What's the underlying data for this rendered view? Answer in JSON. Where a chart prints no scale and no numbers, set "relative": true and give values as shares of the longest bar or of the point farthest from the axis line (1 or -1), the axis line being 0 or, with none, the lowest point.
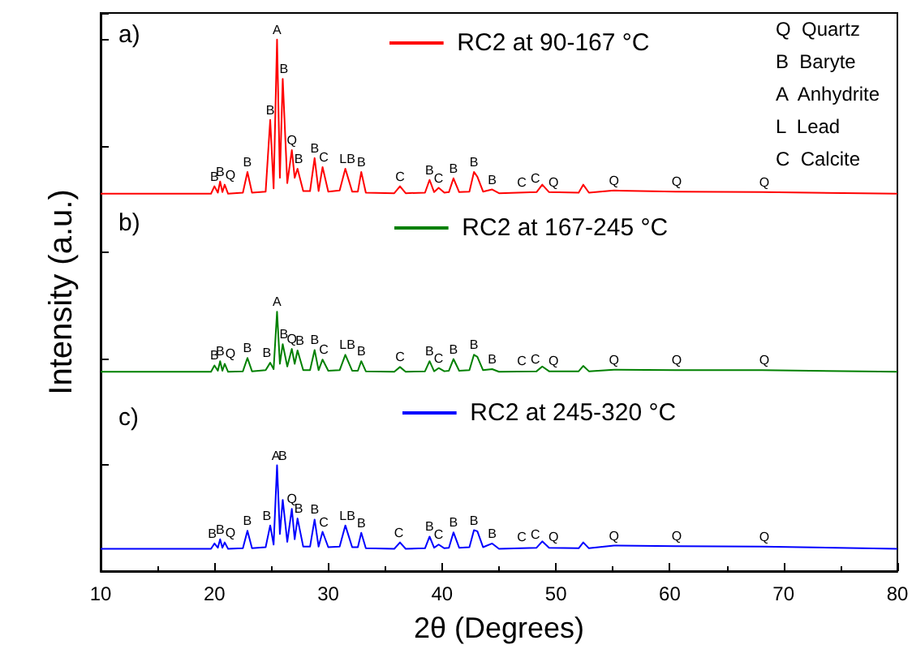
{
  "chart_data": {
    "type": "line",
    "relative": true,
    "xlabel": "2θ (Degrees)",
    "ylabel": "Intensity (a.u.)",
    "xlim": [
      10,
      80
    ],
    "xticks": [
      10,
      20,
      30,
      40,
      50,
      60,
      70,
      80
    ],
    "tick_labels": "x",
    "grid": false,
    "legend": "top",
    "marker": "none",
    "line_style": "solid",
    "x": [
      10,
      15,
      19.7,
      20.0,
      20.3,
      20.5,
      20.7,
      20.9,
      21.2,
      22.5,
      22.9,
      23.3,
      24.5,
      24.9,
      25.2,
      25.5,
      25.75,
      26.0,
      26.4,
      26.8,
      27.05,
      27.3,
      27.8,
      28.4,
      28.8,
      29.15,
      29.5,
      30.0,
      31.0,
      31.5,
      32.1,
      32.6,
      32.9,
      33.3,
      35.8,
      36.3,
      36.8,
      38.5,
      38.9,
      39.3,
      39.7,
      40.2,
      40.6,
      41.0,
      41.5,
      42.4,
      42.8,
      43.1,
      43.6,
      44.4,
      45,
      48.3,
      48.8,
      49.4,
      52.0,
      52.4,
      52.9,
      55.1,
      60.5,
      68.1,
      80
    ],
    "series": [
      {
        "name": "RC2 at 90-167 °C",
        "color": "#ff0000",
        "values": [
          0.71,
          0.71,
          0.71,
          0.724,
          0.712,
          0.733,
          0.713,
          0.727,
          0.71,
          0.712,
          0.751,
          0.712,
          0.714,
          0.849,
          0.72,
          1.0,
          0.74,
          0.926,
          0.73,
          0.792,
          0.74,
          0.757,
          0.715,
          0.715,
          0.777,
          0.715,
          0.76,
          0.714,
          0.716,
          0.757,
          0.714,
          0.714,
          0.751,
          0.712,
          0.711,
          0.724,
          0.711,
          0.712,
          0.736,
          0.713,
          0.721,
          0.712,
          0.713,
          0.739,
          0.713,
          0.714,
          0.751,
          0.742,
          0.714,
          0.718,
          0.711,
          0.713,
          0.727,
          0.713,
          0.712,
          0.727,
          0.712,
          0.716,
          0.714,
          0.713,
          0.71
        ]
      },
      {
        "name": "RC2 at 167-245 °C",
        "color": "#008000",
        "values": [
          0.375,
          0.375,
          0.375,
          0.387,
          0.377,
          0.395,
          0.377,
          0.39,
          0.375,
          0.376,
          0.401,
          0.376,
          0.378,
          0.392,
          0.38,
          0.488,
          0.39,
          0.427,
          0.385,
          0.418,
          0.39,
          0.415,
          0.378,
          0.378,
          0.416,
          0.378,
          0.398,
          0.377,
          0.378,
          0.407,
          0.377,
          0.377,
          0.395,
          0.376,
          0.375,
          0.384,
          0.375,
          0.376,
          0.395,
          0.376,
          0.382,
          0.376,
          0.377,
          0.399,
          0.377,
          0.378,
          0.407,
          0.403,
          0.378,
          0.38,
          0.375,
          0.376,
          0.385,
          0.376,
          0.376,
          0.386,
          0.376,
          0.379,
          0.378,
          0.378,
          0.375
        ]
      },
      {
        "name": "RC2 at 245-320 °C",
        "color": "#0000ff",
        "values": [
          0.042,
          0.042,
          0.042,
          0.052,
          0.044,
          0.06,
          0.044,
          0.054,
          0.042,
          0.043,
          0.076,
          0.043,
          0.045,
          0.086,
          0.05,
          0.199,
          0.07,
          0.134,
          0.055,
          0.117,
          0.06,
          0.099,
          0.046,
          0.046,
          0.097,
          0.046,
          0.074,
          0.045,
          0.046,
          0.086,
          0.045,
          0.045,
          0.072,
          0.043,
          0.042,
          0.054,
          0.042,
          0.043,
          0.065,
          0.044,
          0.05,
          0.043,
          0.044,
          0.073,
          0.044,
          0.045,
          0.077,
          0.075,
          0.045,
          0.052,
          0.042,
          0.044,
          0.056,
          0.044,
          0.043,
          0.054,
          0.043,
          0.048,
          0.047,
          0.046,
          0.042
        ]
      }
    ],
    "annotations": [
      "a)",
      "b)",
      "c)",
      "Q  Quartz",
      "B  Baryte",
      "A  Anhydrite",
      "L  Lead",
      "C  Calcite",
      {
        "text": "B",
        "x": 20.0,
        "y": 0.724
      },
      {
        "text": "B",
        "x": 20.5,
        "y": 0.733
      },
      {
        "text": "Q",
        "x": 21.4,
        "y": 0.727
      },
      {
        "text": "B",
        "x": 22.9,
        "y": 0.751
      },
      {
        "text": "B",
        "x": 24.9,
        "y": 0.849
      },
      {
        "text": "A",
        "x": 25.5,
        "y": 1.0
      },
      {
        "text": "B",
        "x": 26.1,
        "y": 0.926
      },
      {
        "text": "Q",
        "x": 26.8,
        "y": 0.792
      },
      {
        "text": "B",
        "x": 27.4,
        "y": 0.757
      },
      {
        "text": "B",
        "x": 28.8,
        "y": 0.777
      },
      {
        "text": "C",
        "x": 29.6,
        "y": 0.76
      },
      {
        "text": "L",
        "x": 31.3,
        "y": 0.757
      },
      {
        "text": "B",
        "x": 32.0,
        "y": 0.757
      },
      {
        "text": "B",
        "x": 32.9,
        "y": 0.751
      },
      {
        "text": "C",
        "x": 36.3,
        "y": 0.724
      },
      {
        "text": "B",
        "x": 38.9,
        "y": 0.736
      },
      {
        "text": "C",
        "x": 39.7,
        "y": 0.721
      },
      {
        "text": "B",
        "x": 41.0,
        "y": 0.739
      },
      {
        "text": "B",
        "x": 42.8,
        "y": 0.751
      },
      {
        "text": "B",
        "x": 44.4,
        "y": 0.718
      },
      {
        "text": "C",
        "x": 47.0,
        "y": 0.713
      },
      {
        "text": "C",
        "x": 48.2,
        "y": 0.72
      },
      {
        "text": "Q",
        "x": 49.8,
        "y": 0.713
      },
      {
        "text": "Q",
        "x": 55.1,
        "y": 0.716
      },
      {
        "text": "Q",
        "x": 60.6,
        "y": 0.714
      },
      {
        "text": "Q",
        "x": 68.3,
        "y": 0.713
      },
      {
        "text": "B",
        "x": 20.0,
        "y": 0.387
      },
      {
        "text": "B",
        "x": 20.5,
        "y": 0.395
      },
      {
        "text": "Q",
        "x": 21.4,
        "y": 0.39
      },
      {
        "text": "B",
        "x": 22.9,
        "y": 0.401
      },
      {
        "text": "B",
        "x": 24.6,
        "y": 0.392
      },
      {
        "text": "A",
        "x": 25.5,
        "y": 0.488
      },
      {
        "text": "B",
        "x": 26.1,
        "y": 0.427
      },
      {
        "text": "Q",
        "x": 26.8,
        "y": 0.418
      },
      {
        "text": "B",
        "x": 27.5,
        "y": 0.415
      },
      {
        "text": "B",
        "x": 28.8,
        "y": 0.416
      },
      {
        "text": "C",
        "x": 29.6,
        "y": 0.398
      },
      {
        "text": "L",
        "x": 31.3,
        "y": 0.407
      },
      {
        "text": "B",
        "x": 32.0,
        "y": 0.407
      },
      {
        "text": "B",
        "x": 32.9,
        "y": 0.395
      },
      {
        "text": "C",
        "x": 36.3,
        "y": 0.384
      },
      {
        "text": "B",
        "x": 38.9,
        "y": 0.395
      },
      {
        "text": "C",
        "x": 39.7,
        "y": 0.382
      },
      {
        "text": "B",
        "x": 41.0,
        "y": 0.399
      },
      {
        "text": "B",
        "x": 42.8,
        "y": 0.407
      },
      {
        "text": "B",
        "x": 44.4,
        "y": 0.38
      },
      {
        "text": "C",
        "x": 47.0,
        "y": 0.377
      },
      {
        "text": "C",
        "x": 48.2,
        "y": 0.38
      },
      {
        "text": "Q",
        "x": 49.8,
        "y": 0.377
      },
      {
        "text": "Q",
        "x": 55.1,
        "y": 0.379
      },
      {
        "text": "Q",
        "x": 60.6,
        "y": 0.378
      },
      {
        "text": "Q",
        "x": 68.3,
        "y": 0.378
      },
      {
        "text": "B",
        "x": 19.8,
        "y": 0.052
      },
      {
        "text": "B",
        "x": 20.5,
        "y": 0.06
      },
      {
        "text": "Q",
        "x": 21.4,
        "y": 0.054
      },
      {
        "text": "B",
        "x": 22.9,
        "y": 0.076
      },
      {
        "text": "B",
        "x": 24.6,
        "y": 0.086
      },
      {
        "text": "A",
        "x": 25.4,
        "y": 0.199
      },
      {
        "text": "B",
        "x": 26.0,
        "y": 0.199
      },
      {
        "text": "Q",
        "x": 26.8,
        "y": 0.117
      },
      {
        "text": "B",
        "x": 27.4,
        "y": 0.099
      },
      {
        "text": "B",
        "x": 28.8,
        "y": 0.097
      },
      {
        "text": "C",
        "x": 29.6,
        "y": 0.074
      },
      {
        "text": "L",
        "x": 31.3,
        "y": 0.086
      },
      {
        "text": "B",
        "x": 32.0,
        "y": 0.086
      },
      {
        "text": "B",
        "x": 32.9,
        "y": 0.072
      },
      {
        "text": "C",
        "x": 36.2,
        "y": 0.054
      },
      {
        "text": "B",
        "x": 38.9,
        "y": 0.065
      },
      {
        "text": "C",
        "x": 39.7,
        "y": 0.05
      },
      {
        "text": "B",
        "x": 41.0,
        "y": 0.073
      },
      {
        "text": "B",
        "x": 42.8,
        "y": 0.077
      },
      {
        "text": "B",
        "x": 44.4,
        "y": 0.052
      },
      {
        "text": "C",
        "x": 47.0,
        "y": 0.046
      },
      {
        "text": "C",
        "x": 48.2,
        "y": 0.05
      },
      {
        "text": "Q",
        "x": 49.8,
        "y": 0.046
      },
      {
        "text": "Q",
        "x": 55.1,
        "y": 0.048
      },
      {
        "text": "Q",
        "x": 60.6,
        "y": 0.047
      },
      {
        "text": "Q",
        "x": 68.3,
        "y": 0.046
      }
    ]
  }
}
